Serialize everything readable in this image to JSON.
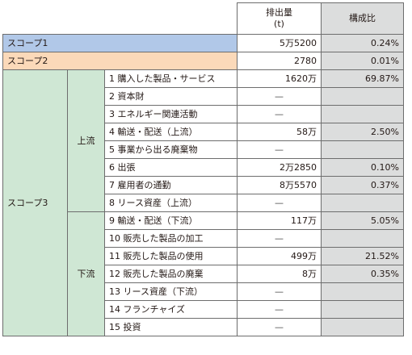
{
  "header": {
    "emissions_label": "排出量",
    "emissions_unit": "(t)",
    "ratio_label": "構成比"
  },
  "scope1": {
    "label": "スコープ1",
    "emissions": "5万5200",
    "ratio": "0.24%"
  },
  "scope2": {
    "label": "スコープ2",
    "emissions": "2780",
    "ratio": "0.01%"
  },
  "scope3": {
    "label": "スコープ3",
    "upstream_label": "上流",
    "downstream_label": "下流",
    "categories": [
      {
        "name": "1 購入した製品・サービス",
        "emissions": "1620万",
        "ratio": "69.87%"
      },
      {
        "name": "2 資本財",
        "emissions": "—",
        "ratio": ""
      },
      {
        "name": "3 エネルギー関連活動",
        "emissions": "—",
        "ratio": ""
      },
      {
        "name": "4 輸送・配送（上流）",
        "emissions": "58万",
        "ratio": "2.50%"
      },
      {
        "name": "5 事業から出る廃棄物",
        "emissions": "—",
        "ratio": ""
      },
      {
        "name": "6 出張",
        "emissions": "2万2850",
        "ratio": "0.10%"
      },
      {
        "name": "7 雇用者の通勤",
        "emissions": "8万5570",
        "ratio": "0.37%"
      },
      {
        "name": "8 リース資産（上流）",
        "emissions": "—",
        "ratio": ""
      },
      {
        "name": "9 輸送・配送（下流）",
        "emissions": "117万",
        "ratio": "5.05%"
      },
      {
        "name": "10 販売した製品の加工",
        "emissions": "—",
        "ratio": ""
      },
      {
        "name": "11 販売した製品の使用",
        "emissions": "499万",
        "ratio": "21.52%"
      },
      {
        "name": "12 販売した製品の廃棄",
        "emissions": "8万",
        "ratio": "0.35%"
      },
      {
        "name": "13 リース資産（下流）",
        "emissions": "—",
        "ratio": ""
      },
      {
        "name": "14 フランチャイズ",
        "emissions": "—",
        "ratio": ""
      },
      {
        "name": "15 投資",
        "emissions": "—",
        "ratio": ""
      }
    ]
  },
  "colors": {
    "scope1": "#b1c8e8",
    "scope2": "#fbd9b9",
    "scope3": "#cfe7d4",
    "ratio_column": "#dcdddd"
  }
}
